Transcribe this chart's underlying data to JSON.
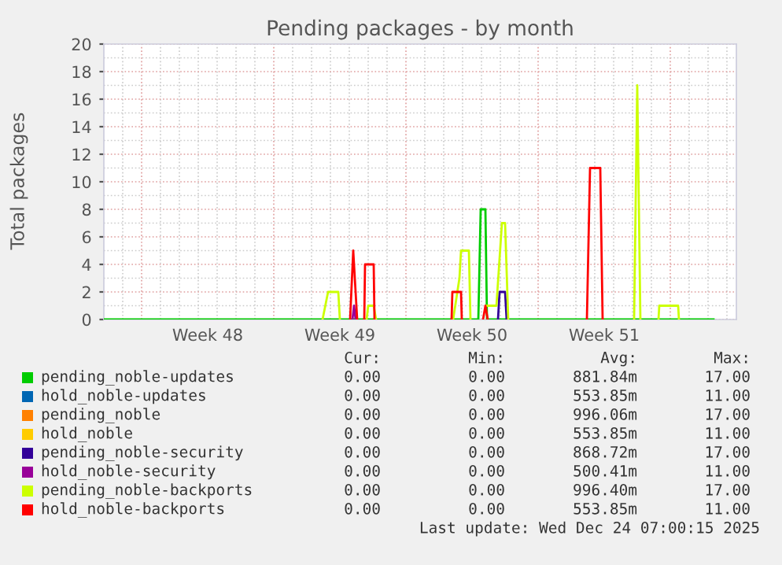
{
  "chart_data": {
    "type": "line",
    "title": "Pending packages - by month",
    "ylabel": "Total packages",
    "xlim": [
      "2025-11-22T00:00",
      "2025-12-25T12:00"
    ],
    "xticks": [
      {
        "value": "2025-11-27T12:00",
        "label": "Week 48"
      },
      {
        "value": "2025-12-04T12:00",
        "label": "Week 49"
      },
      {
        "value": "2025-12-11T12:00",
        "label": "Week 50"
      },
      {
        "value": "2025-12-18T12:00",
        "label": "Week 51"
      }
    ],
    "ylim": [
      0,
      20
    ],
    "yticks": [
      0,
      2,
      4,
      6,
      8,
      10,
      12,
      14,
      16,
      18,
      20
    ],
    "grid": true,
    "legend": "bottom",
    "marker": "none",
    "line_style": "solid",
    "series": [
      {
        "name": "pending_noble-updates",
        "color": "#00cc00",
        "x": [
          "2025-11-22T00:00",
          "2025-12-11T20:00",
          "2025-12-11T23:00",
          "2025-12-12T05:00",
          "2025-12-12T07:00",
          "2025-12-24T07:00"
        ],
        "values": [
          0,
          0,
          8,
          8,
          0,
          0
        ]
      },
      {
        "name": "hold_noble-updates",
        "color": "#0066b3"
      },
      {
        "name": "pending_noble",
        "color": "#ff8000"
      },
      {
        "name": "hold_noble",
        "color": "#ffcc00"
      },
      {
        "name": "pending_noble-security",
        "color": "#330099",
        "x": [
          "2025-12-12T21:00",
          "2025-12-12T23:00",
          "2025-12-13T06:00",
          "2025-12-13T08:00"
        ],
        "values": [
          0,
          2,
          2,
          0
        ]
      },
      {
        "name": "hold_noble-security",
        "color": "#990099",
        "x": [
          "2025-12-05T04:00",
          "2025-12-05T06:00",
          "2025-12-05T08:00"
        ],
        "values": [
          0,
          1,
          0
        ]
      },
      {
        "name": "pending_noble-backports",
        "color": "#ccff00",
        "x": [
          "2025-12-03T14:00",
          "2025-12-03T21:00",
          "2025-12-04T10:00",
          "2025-12-04T12:00",
          "2025-12-05T00:00",
          "2025-12-05T22:00",
          "2025-12-06T00:00",
          "2025-12-06T07:00",
          "2025-12-06T10:00",
          "2025-12-08T00:00",
          "2025-12-10T12:00",
          "2025-12-10T20:00",
          "2025-12-10T22:00",
          "2025-12-11T08:00",
          "2025-12-11T10:00",
          "2025-12-11T15:00",
          "2025-12-12T07:00",
          "2025-12-12T19:00",
          "2025-12-13T02:00",
          "2025-12-13T06:00",
          "2025-12-13T10:00",
          "2025-12-15T00:00",
          "2025-12-20T02:00",
          "2025-12-20T06:00",
          "2025-12-20T10:00",
          "2025-12-21T00:00",
          "2025-12-21T09:00",
          "2025-12-21T10:00",
          "2025-12-22T10:00",
          "2025-12-22T11:00"
        ],
        "values": [
          0,
          2,
          2,
          0,
          null,
          0,
          1,
          1,
          0,
          null,
          0,
          3,
          5,
          5,
          0,
          null,
          1,
          1,
          7,
          7,
          0,
          null,
          0,
          17,
          0,
          null,
          0,
          1,
          1,
          0
        ]
      },
      {
        "name": "hold_noble-backports",
        "color": "#ff0000",
        "x": [
          "2025-12-05T01:00",
          "2025-12-05T05:00",
          "2025-12-05T10:00",
          "2025-12-05T15:00",
          "2025-12-05T19:00",
          "2025-12-05T20:00",
          "2025-12-06T07:00",
          "2025-12-06T08:00",
          "2025-12-08T00:00",
          "2025-12-10T10:00",
          "2025-12-10T11:00",
          "2025-12-10T22:00",
          "2025-12-10T23:00",
          "2025-12-11T12:00",
          "2025-12-12T02:00",
          "2025-12-12T05:00",
          "2025-12-12T08:00",
          "2025-12-15T00:00",
          "2025-12-17T14:00",
          "2025-12-17T18:00",
          "2025-12-18T07:00",
          "2025-12-18T10:00"
        ],
        "values": [
          0,
          5,
          0,
          null,
          0,
          4,
          4,
          0,
          null,
          0,
          2,
          2,
          0,
          null,
          0,
          1,
          0,
          null,
          0,
          11,
          11,
          0
        ]
      }
    ],
    "annotations": [
      "Cur:",
      "Min:",
      "Avg:",
      "Max:",
      "0.00",
      "0.00",
      "881.84m",
      "17.00",
      "0.00",
      "0.00",
      "553.85m",
      "11.00",
      "0.00",
      "0.00",
      "996.06m",
      "17.00",
      "0.00",
      "0.00",
      "553.85m",
      "11.00",
      "0.00",
      "0.00",
      "868.72m",
      "17.00",
      "0.00",
      "0.00",
      "500.41m",
      "11.00",
      "0.00",
      "0.00",
      "996.40m",
      "17.00",
      "0.00",
      "0.00",
      "553.85m",
      "11.00",
      "Last update: Wed Dec 24 07:00:15 2025"
    ]
  }
}
